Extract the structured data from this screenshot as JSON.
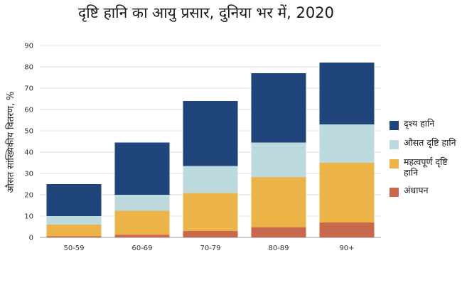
{
  "chart_data": {
    "type": "bar",
    "stacked": true,
    "title": "दृष्टि हानि का आयु प्रसार, दुनिया भर में, 2020",
    "xlabel": "",
    "ylabel": "औसत सांख्यिकीय वितरण, %",
    "ylim": [
      0,
      90
    ],
    "yticks": [
      0,
      10,
      20,
      30,
      40,
      50,
      60,
      70,
      80,
      90
    ],
    "grid": true,
    "legend_position": "right",
    "categories": [
      "50-59",
      "60-69",
      "70-79",
      "80-89",
      "90+"
    ],
    "series": [
      {
        "name": "अंधापन",
        "color": "#c8694b",
        "values": [
          0.5,
          1.3,
          3,
          4.8,
          7
        ]
      },
      {
        "name": "महत्वपूर्ण दृष्टि हानि",
        "color": "#ecb347",
        "values": [
          5.5,
          11.2,
          17.8,
          23.5,
          28
        ]
      },
      {
        "name": "औसत दृष्टि हानि",
        "color": "#bcd9de",
        "values": [
          4,
          7.5,
          12.7,
          16.2,
          18
        ]
      },
      {
        "name": "दृश्य हानि",
        "color": "#1f457b",
        "values": [
          15,
          24.5,
          30.5,
          32.5,
          29
        ]
      }
    ],
    "legend_order": [
      "दृश्य हानि",
      "औसत दृष्टि हानि",
      "महत्वपूर्ण दृष्टि हानि",
      "अंधापन"
    ]
  }
}
